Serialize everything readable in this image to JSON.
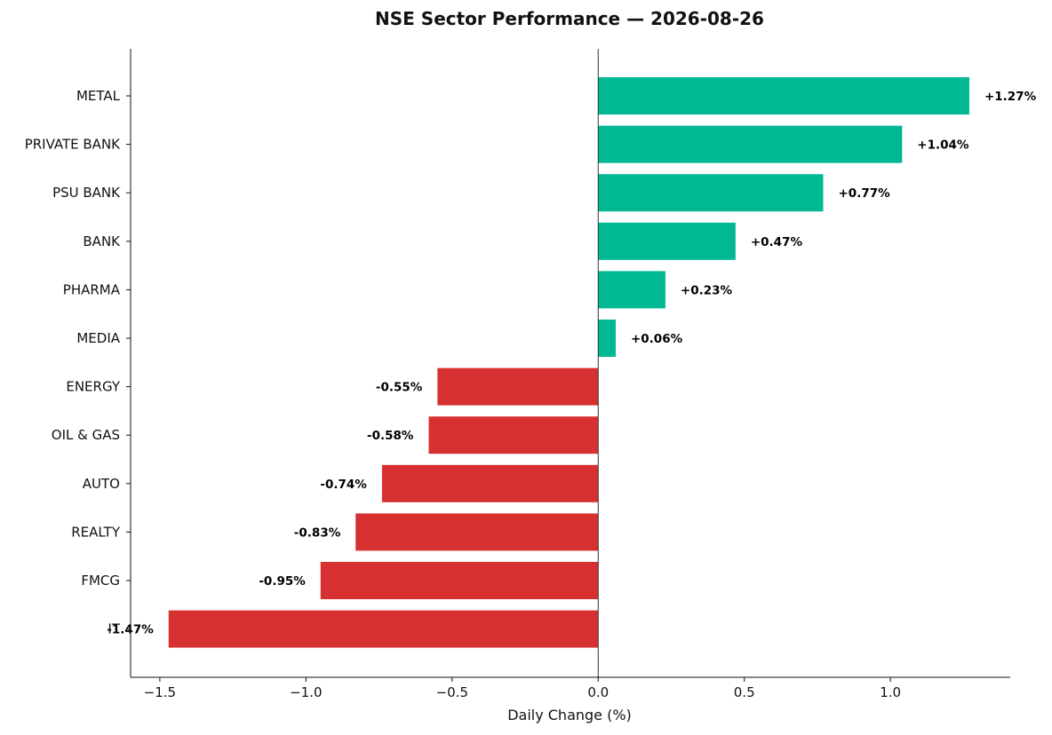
{
  "chart_data": {
    "type": "bar",
    "orientation": "horizontal",
    "title": "NSE Sector Performance — 2026-08-26",
    "xlabel": "Daily Change (%)",
    "ylabel": "",
    "xlim": [
      -1.6,
      1.41
    ],
    "xticks": [
      -1.5,
      -1.0,
      -0.5,
      0.0,
      0.5,
      1.0
    ],
    "xtick_labels": [
      "−1.5",
      "−1.0",
      "−0.5",
      "0.0",
      "0.5",
      "1.0"
    ],
    "grid": false,
    "legend": "none",
    "categories": [
      "METAL",
      "PRIVATE BANK",
      "PSU BANK",
      "BANK",
      "PHARMA",
      "MEDIA",
      "ENERGY",
      "OIL & GAS",
      "AUTO",
      "REALTY",
      "FMCG",
      "IT"
    ],
    "values": [
      1.27,
      1.04,
      0.77,
      0.47,
      0.23,
      0.06,
      -0.55,
      -0.58,
      -0.74,
      -0.83,
      -0.95,
      -1.47
    ],
    "value_labels": [
      "+1.27%",
      "+1.04%",
      "+0.77%",
      "+0.47%",
      "+0.23%",
      "+0.06%",
      "-0.55%",
      "-0.58%",
      "-0.74%",
      "-0.83%",
      "-0.95%",
      "-1.47%"
    ],
    "colors": {
      "positive": "#00b894",
      "negative": "#d63031",
      "zero_line": "#333333"
    }
  }
}
